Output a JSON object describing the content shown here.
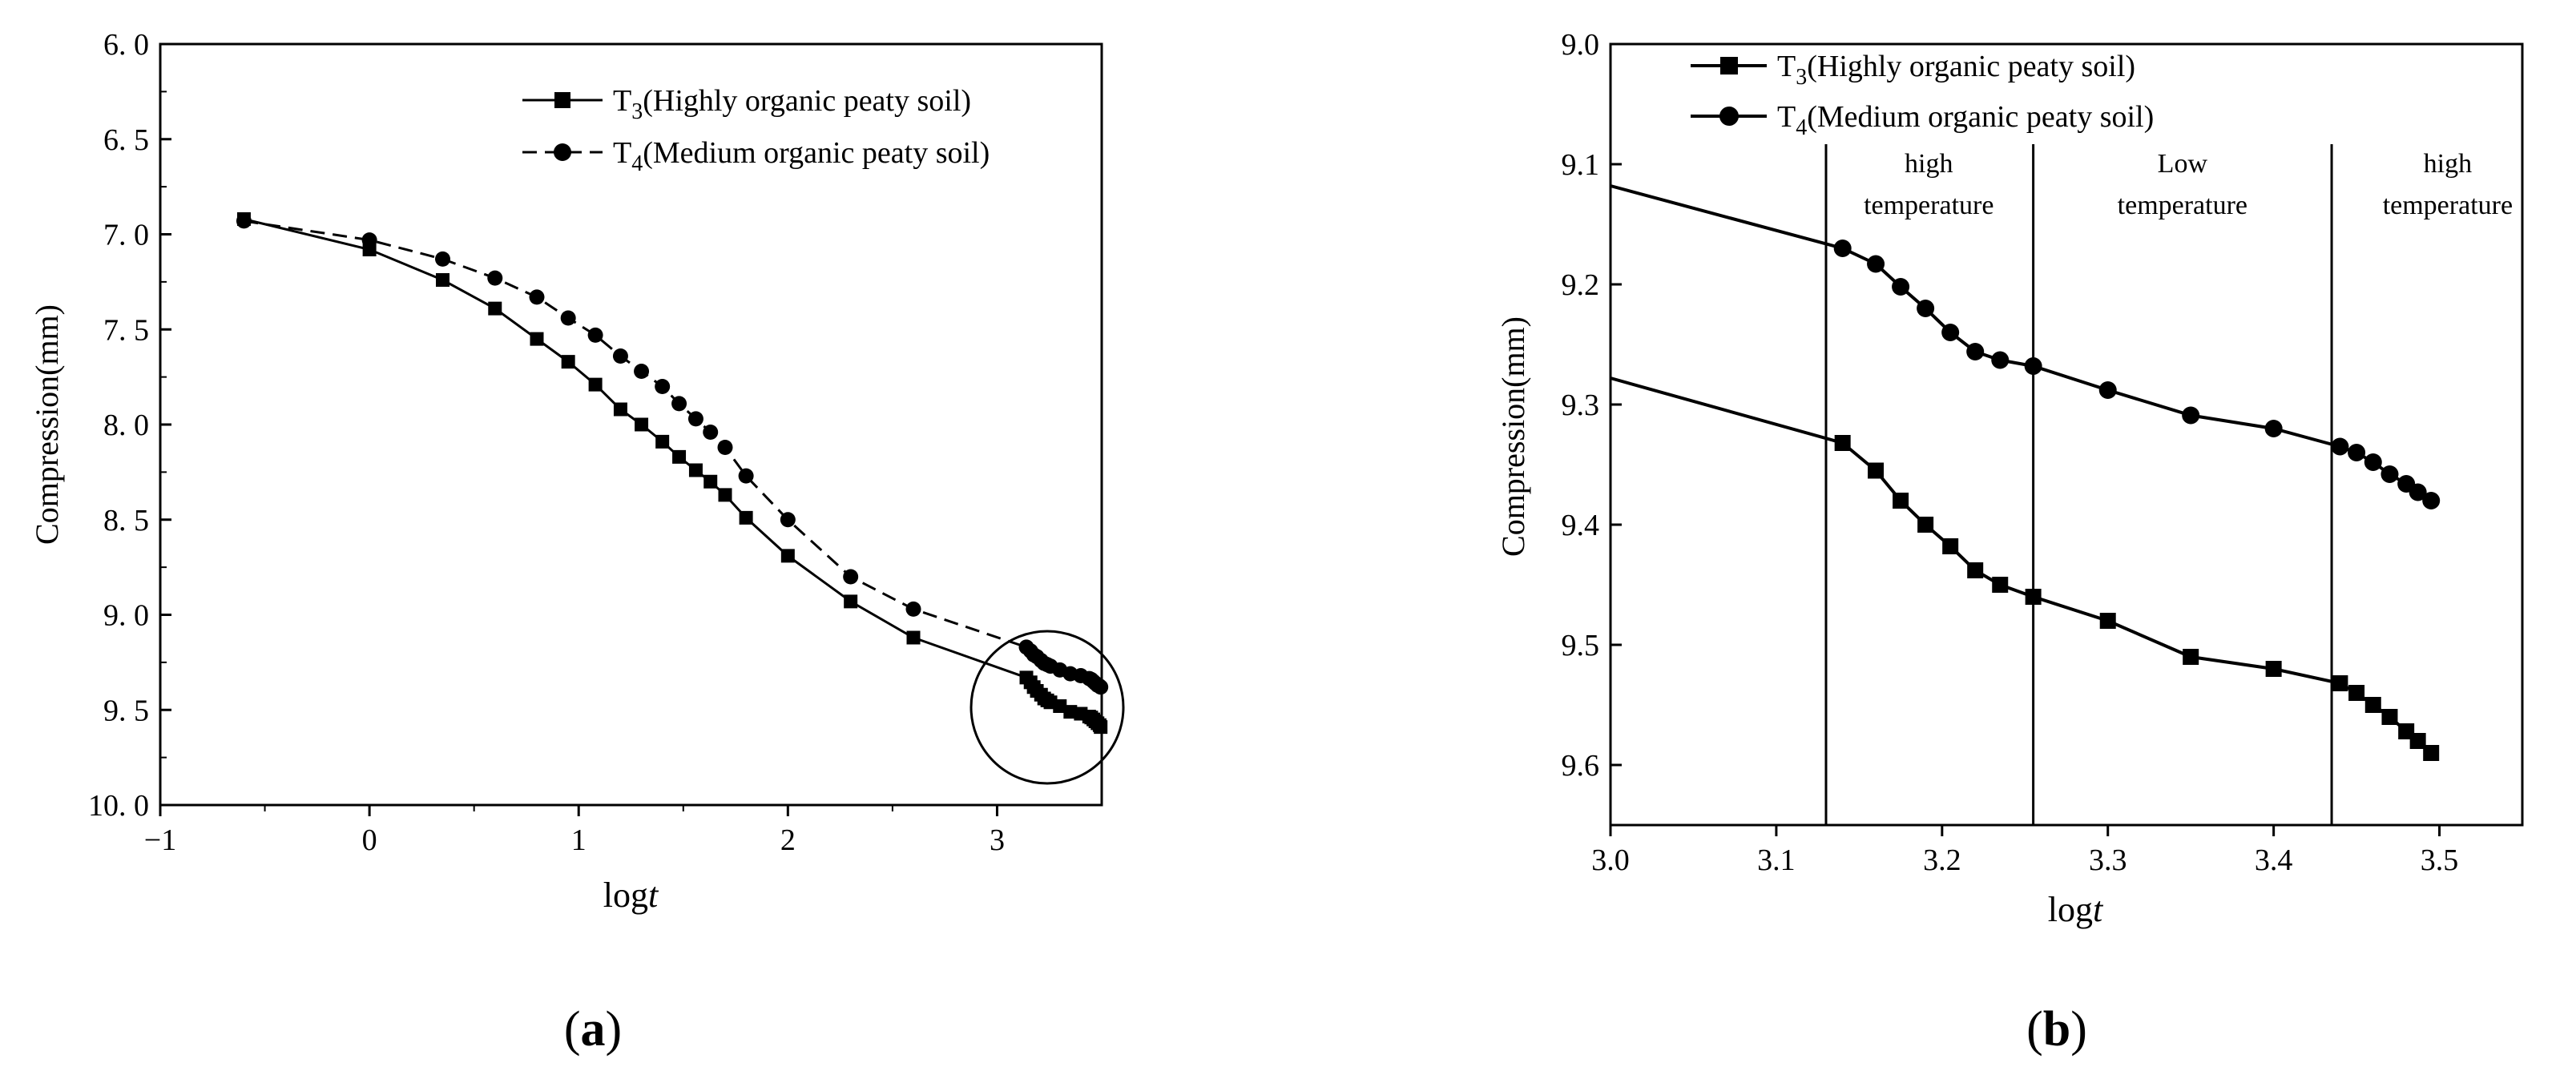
{
  "chart_data": [
    {
      "type": "line",
      "panel_label": "(a)",
      "panel_letter": "a",
      "xlabel_prefix": "log",
      "xlabel_italic": "t",
      "ylabel": "Compression(mm)",
      "xlim": [
        -1,
        3.5
      ],
      "ylim": [
        6.0,
        10.0
      ],
      "y_inverted": true,
      "x_ticks": [
        "−1",
        "0",
        "1",
        "2",
        "3"
      ],
      "x_tick_values": [
        -1,
        0,
        1,
        2,
        3
      ],
      "y_ticks": [
        "6. 0",
        "6. 5",
        "7. 0",
        "7. 5",
        "8. 0",
        "8. 5",
        "9. 0",
        "9. 5",
        "10. 0"
      ],
      "y_tick_values": [
        6.0,
        6.5,
        7.0,
        7.5,
        8.0,
        8.5,
        9.0,
        9.5,
        10.0
      ],
      "legend_position": "top-right",
      "annotation": "circle around the final cluster of points",
      "series": [
        {
          "legend_prefix": "T",
          "legend_sub": "3",
          "legend_suffix": "(Highly organic peaty soil)",
          "marker": "square",
          "line_style": "solid",
          "points": [
            [
              -0.6,
              6.92
            ],
            [
              0,
              7.08
            ],
            [
              0.35,
              7.24
            ],
            [
              0.6,
              7.39
            ],
            [
              0.8,
              7.55
            ],
            [
              0.95,
              7.67
            ],
            [
              1.08,
              7.79
            ],
            [
              1.2,
              7.92
            ],
            [
              1.3,
              8.0
            ],
            [
              1.4,
              8.09
            ],
            [
              1.48,
              8.17
            ],
            [
              1.56,
              8.24
            ],
            [
              1.63,
              8.3
            ],
            [
              1.7,
              8.37
            ],
            [
              1.8,
              8.49
            ],
            [
              2.0,
              8.69
            ],
            [
              2.3,
              8.93
            ],
            [
              2.6,
              9.12
            ],
            [
              3.14,
              9.33
            ],
            [
              3.16,
              9.355
            ],
            [
              3.175,
              9.38
            ],
            [
              3.19,
              9.4
            ],
            [
              3.21,
              9.42
            ],
            [
              3.225,
              9.44
            ],
            [
              3.24,
              9.45
            ],
            [
              3.255,
              9.46
            ],
            [
              3.3,
              9.48
            ],
            [
              3.35,
              9.51
            ],
            [
              3.4,
              9.52
            ],
            [
              3.44,
              9.535
            ],
            [
              3.45,
              9.54
            ],
            [
              3.46,
              9.55
            ],
            [
              3.47,
              9.56
            ],
            [
              3.48,
              9.57
            ],
            [
              3.49,
              9.58
            ],
            [
              3.495,
              9.59
            ]
          ]
        },
        {
          "legend_prefix": "T",
          "legend_sub": "4",
          "legend_suffix": "(Medium organic peaty soil)",
          "marker": "circle",
          "line_style": "dashed",
          "points": [
            [
              -0.6,
              6.93
            ],
            [
              0,
              7.03
            ],
            [
              0.35,
              7.13
            ],
            [
              0.6,
              7.23
            ],
            [
              0.8,
              7.33
            ],
            [
              0.95,
              7.44
            ],
            [
              1.08,
              7.53
            ],
            [
              1.2,
              7.64
            ],
            [
              1.3,
              7.72
            ],
            [
              1.4,
              7.8
            ],
            [
              1.48,
              7.89
            ],
            [
              1.56,
              7.97
            ],
            [
              1.63,
              8.04
            ],
            [
              1.7,
              8.12
            ],
            [
              1.8,
              8.27
            ],
            [
              2.0,
              8.5
            ],
            [
              2.3,
              8.8
            ],
            [
              2.6,
              8.97
            ],
            [
              3.14,
              9.17
            ],
            [
              3.16,
              9.19
            ],
            [
              3.175,
              9.21
            ],
            [
              3.19,
              9.22
            ],
            [
              3.21,
              9.24
            ],
            [
              3.225,
              9.255
            ],
            [
              3.24,
              9.262
            ],
            [
              3.255,
              9.27
            ],
            [
              3.3,
              9.29
            ],
            [
              3.35,
              9.31
            ],
            [
              3.4,
              9.32
            ],
            [
              3.44,
              9.335
            ],
            [
              3.45,
              9.34
            ],
            [
              3.46,
              9.35
            ],
            [
              3.47,
              9.36
            ],
            [
              3.48,
              9.37
            ],
            [
              3.49,
              9.375
            ],
            [
              3.495,
              9.38
            ]
          ]
        }
      ]
    },
    {
      "type": "line",
      "panel_label": "(b)",
      "panel_letter": "b",
      "xlabel_prefix": "log",
      "xlabel_italic": "t",
      "ylabel": "Compression(mm)",
      "xlim": [
        3.0,
        3.55
      ],
      "ylim": [
        9.0,
        9.65
      ],
      "y_inverted": true,
      "x_ticks": [
        "3.0",
        "3.1",
        "3.2",
        "3.3",
        "3.4",
        "3.5"
      ],
      "x_tick_values": [
        3.0,
        3.1,
        3.2,
        3.3,
        3.4,
        3.5
      ],
      "y_ticks": [
        "9.0",
        "9.1",
        "9.2",
        "9.3",
        "9.4",
        "9.5",
        "9.6"
      ],
      "y_tick_values": [
        9.0,
        9.1,
        9.2,
        9.3,
        9.4,
        9.5,
        9.6
      ],
      "legend_position": "top-left",
      "dividers": [
        3.13,
        3.255,
        3.435
      ],
      "regions": [
        {
          "lines": [
            "high",
            "temperature"
          ],
          "x_center": 3.192
        },
        {
          "lines": [
            "Low",
            "temperature"
          ],
          "x_center": 3.345
        },
        {
          "lines": [
            "high",
            "temperature"
          ],
          "x_center": 3.505
        }
      ],
      "series": [
        {
          "legend_prefix": "T",
          "legend_sub": "3",
          "legend_suffix": "(Highly organic peaty soil)",
          "marker": "square",
          "line_style": "solid",
          "line_start": [
            3.0,
            9.278
          ],
          "points": [
            [
              3.14,
              9.332
            ],
            [
              3.16,
              9.355
            ],
            [
              3.175,
              9.38
            ],
            [
              3.19,
              9.4
            ],
            [
              3.205,
              9.418
            ],
            [
              3.22,
              9.438
            ],
            [
              3.235,
              9.45
            ],
            [
              3.255,
              9.46
            ],
            [
              3.3,
              9.48
            ],
            [
              3.35,
              9.51
            ],
            [
              3.4,
              9.52
            ],
            [
              3.44,
              9.532
            ],
            [
              3.45,
              9.54
            ],
            [
              3.46,
              9.55
            ],
            [
              3.47,
              9.56
            ],
            [
              3.48,
              9.572
            ],
            [
              3.487,
              9.58
            ],
            [
              3.495,
              9.59
            ]
          ]
        },
        {
          "legend_prefix": "T",
          "legend_sub": "4",
          "legend_suffix": "(Medium organic peaty soil)",
          "marker": "circle",
          "line_style": "solid",
          "line_start": [
            3.0,
            9.118
          ],
          "points": [
            [
              3.14,
              9.17
            ],
            [
              3.16,
              9.183
            ],
            [
              3.175,
              9.202
            ],
            [
              3.19,
              9.22
            ],
            [
              3.205,
              9.24
            ],
            [
              3.22,
              9.256
            ],
            [
              3.235,
              9.263
            ],
            [
              3.255,
              9.268
            ],
            [
              3.3,
              9.288
            ],
            [
              3.35,
              9.309
            ],
            [
              3.4,
              9.32
            ],
            [
              3.44,
              9.335
            ],
            [
              3.45,
              9.34
            ],
            [
              3.46,
              9.348
            ],
            [
              3.47,
              9.358
            ],
            [
              3.48,
              9.366
            ],
            [
              3.487,
              9.373
            ],
            [
              3.495,
              9.38
            ]
          ]
        }
      ]
    }
  ]
}
